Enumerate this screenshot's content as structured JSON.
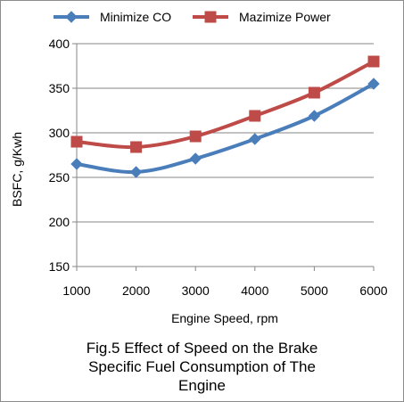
{
  "chart_data": {
    "type": "line",
    "xlabel": "Engine Speed, rpm",
    "ylabel": "BSFC, g/Kwh",
    "x": [
      1000,
      2000,
      3000,
      4000,
      5000,
      6000
    ],
    "x_ticks": [
      "1000",
      "2000",
      "3000",
      "4000",
      "5000",
      "6000"
    ],
    "y_ticks": [
      "150",
      "200",
      "250",
      "300",
      "350",
      "400"
    ],
    "ylim": [
      150,
      400
    ],
    "grid": "horizontal",
    "legend_position": "top",
    "series": [
      {
        "name": "Minimize CO",
        "values": [
          265,
          256,
          271,
          293,
          319,
          355
        ],
        "color": "#4a7ebb",
        "marker": "diamond"
      },
      {
        "name": "Mazimize Power",
        "values": [
          290,
          284,
          296,
          319,
          345,
          380
        ],
        "color": "#be4b48",
        "marker": "square"
      }
    ]
  },
  "caption": {
    "line1": "Fig.5 Effect of Speed on the Brake",
    "line2": "Specific Fuel Consumption of The",
    "line3": "Engine"
  }
}
